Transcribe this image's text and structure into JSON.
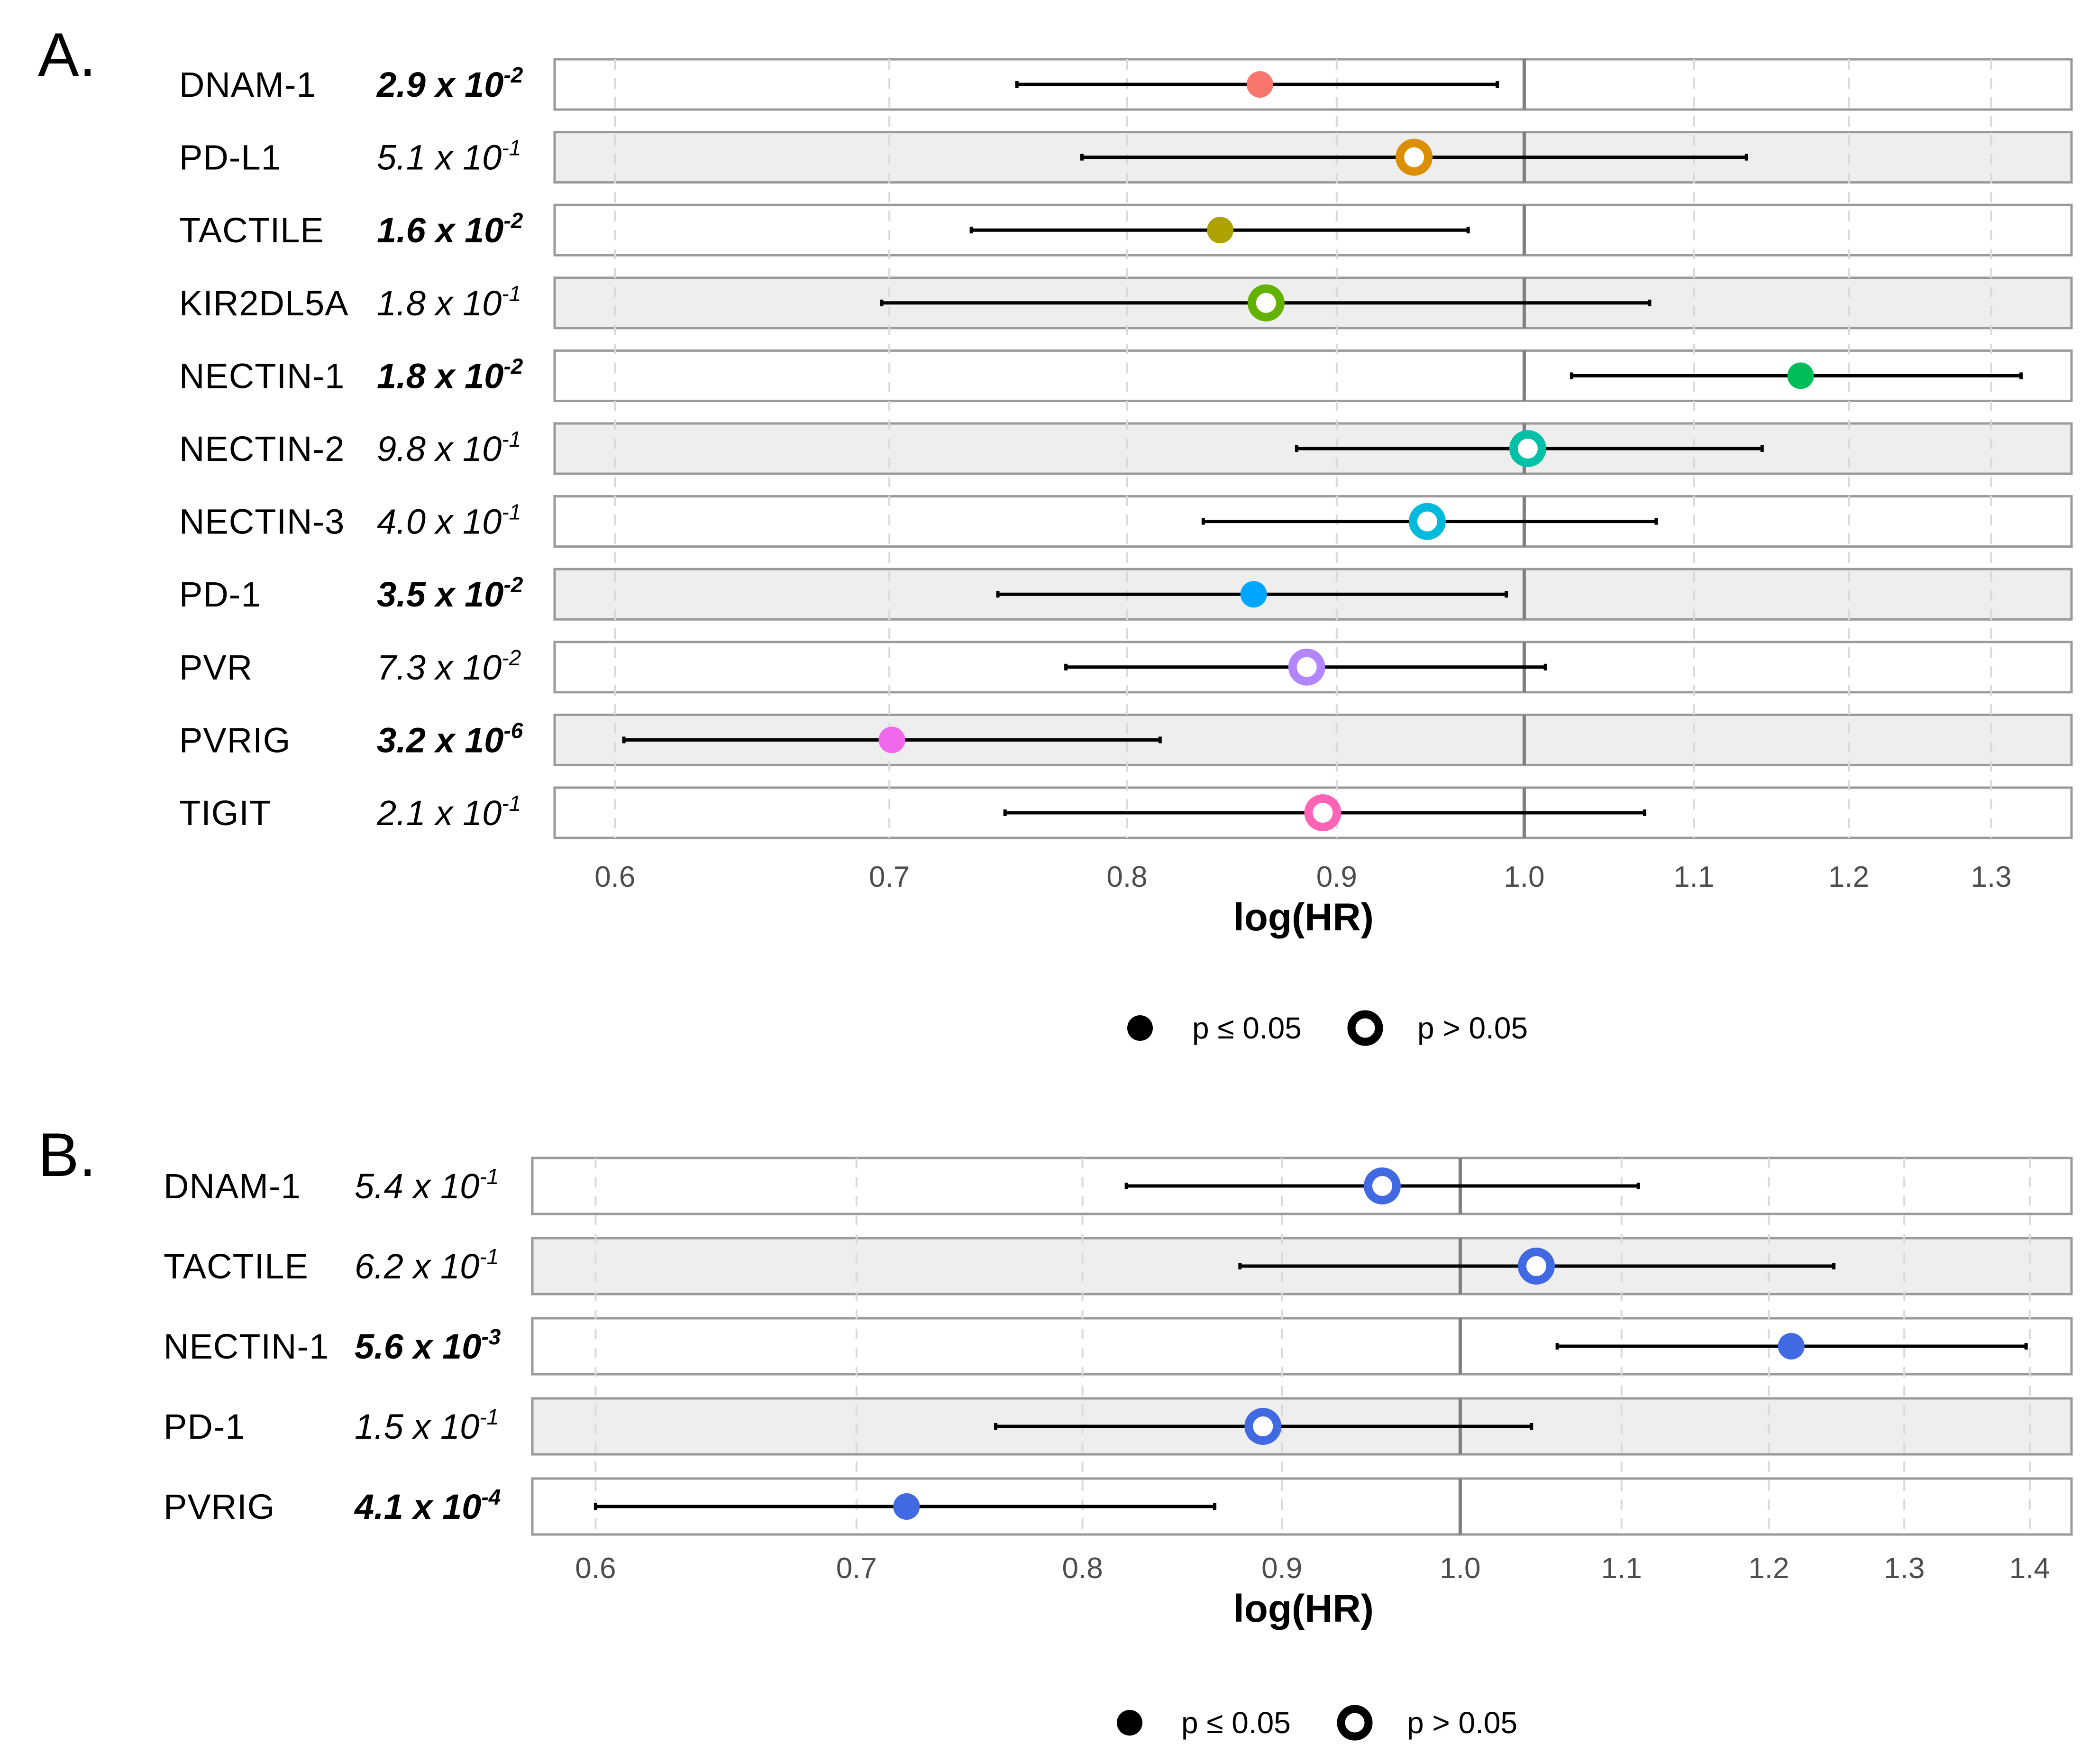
{
  "legend": {
    "sig_label": "p ≤ 0.05",
    "nonsig_label": "p > 0.05"
  },
  "chart_data": [
    {
      "panel": "A.",
      "type": "forest",
      "xlabel": "log(HR)",
      "xlim": [
        0.58,
        1.36
      ],
      "log_scale": true,
      "reference_line": 1.0,
      "xticks": [
        0.6,
        0.7,
        0.8,
        0.9,
        1.0,
        1.1,
        1.2,
        1.3
      ],
      "xtick_labels": [
        "0.6",
        "0.7",
        "0.8",
        "0.9",
        "1.0",
        "1.1",
        "1.2",
        "1.3"
      ],
      "legend": [
        "p ≤ 0.05",
        "p > 0.05"
      ],
      "rows": [
        {
          "label": "DNAM-1",
          "p_mant": "2.9 x 10",
          "p_exp": "-2",
          "hr": 0.862,
          "lo": 0.752,
          "hi": 0.985,
          "significant": true,
          "color": "#F8766D"
        },
        {
          "label": "PD-L1",
          "p_mant": "5.1 x 10",
          "p_exp": "-1",
          "hr": 0.94,
          "lo": 0.78,
          "hi": 1.133,
          "significant": false,
          "color": "#DB8E00"
        },
        {
          "label": "TACTILE",
          "p_mant": "1.6 x 10",
          "p_exp": "-2",
          "hr": 0.843,
          "lo": 0.733,
          "hi": 0.969,
          "significant": true,
          "color": "#AEA200"
        },
        {
          "label": "KIR2DL5A",
          "p_mant": "1.8 x 10",
          "p_exp": "-1",
          "hr": 0.865,
          "lo": 0.697,
          "hi": 1.073,
          "significant": false,
          "color": "#64B200"
        },
        {
          "label": "NECTIN-1",
          "p_mant": "1.8 x 10",
          "p_exp": "-2",
          "hr": 1.168,
          "lo": 1.027,
          "hi": 1.322,
          "significant": true,
          "color": "#00BD5C"
        },
        {
          "label": "NECTIN-2",
          "p_mant": "9.8 x 10",
          "p_exp": "-1",
          "hr": 1.002,
          "lo": 0.88,
          "hi": 1.143,
          "significant": false,
          "color": "#00C1A7"
        },
        {
          "label": "NECTIN-3",
          "p_mant": "4.0 x 10",
          "p_exp": "-1",
          "hr": 0.947,
          "lo": 0.835,
          "hi": 1.077,
          "significant": false,
          "color": "#00BADE"
        },
        {
          "label": "PD-1",
          "p_mant": "3.5 x 10",
          "p_exp": "-2",
          "hr": 0.859,
          "lo": 0.744,
          "hi": 0.99,
          "significant": true,
          "color": "#00A6FF"
        },
        {
          "label": "PVR",
          "p_mant": "7.3 x 10",
          "p_exp": "-2",
          "hr": 0.885,
          "lo": 0.773,
          "hi": 1.012,
          "significant": false,
          "color": "#B385FF"
        },
        {
          "label": "PVRIG",
          "p_mant": "3.2 x 10",
          "p_exp": "-6",
          "hr": 0.701,
          "lo": 0.603,
          "hi": 0.815,
          "significant": true,
          "color": "#EF67EB"
        },
        {
          "label": "TIGIT",
          "p_mant": "2.1 x 10",
          "p_exp": "-1",
          "hr": 0.893,
          "lo": 0.747,
          "hi": 1.07,
          "significant": false,
          "color": "#FF63B6"
        }
      ]
    },
    {
      "panel": "B.",
      "type": "forest",
      "xlabel": "log(HR)",
      "xlim": [
        0.578,
        1.435
      ],
      "log_scale": true,
      "reference_line": 1.0,
      "xticks": [
        0.6,
        0.7,
        0.8,
        0.9,
        1.0,
        1.1,
        1.2,
        1.3,
        1.4
      ],
      "xtick_labels": [
        "0.6",
        "0.7",
        "0.8",
        "0.9",
        "1.0",
        "1.1",
        "1.2",
        "1.3",
        "1.4"
      ],
      "legend": [
        "p ≤ 0.05",
        "p > 0.05"
      ],
      "rows": [
        {
          "label": "DNAM-1",
          "p_mant": "5.4 x 10",
          "p_exp": "-1",
          "hr": 0.955,
          "lo": 0.821,
          "hi": 1.111,
          "significant": false,
          "color": "#4169E1"
        },
        {
          "label": "TACTILE",
          "p_mant": "6.2 x 10",
          "p_exp": "-1",
          "hr": 1.046,
          "lo": 0.878,
          "hi": 1.247,
          "significant": false,
          "color": "#4169E1"
        },
        {
          "label": "NECTIN-1",
          "p_mant": "5.6 x 10",
          "p_exp": "-3",
          "hr": 1.216,
          "lo": 1.059,
          "hi": 1.397,
          "significant": true,
          "color": "#4169E1"
        },
        {
          "label": "PD-1",
          "p_mant": "1.5 x 10",
          "p_exp": "-1",
          "hr": 0.89,
          "lo": 0.76,
          "hi": 1.043,
          "significant": false,
          "color": "#4169E1"
        },
        {
          "label": "PVRIG",
          "p_mant": "4.1 x 10",
          "p_exp": "-4",
          "hr": 0.721,
          "lo": 0.6,
          "hi": 0.865,
          "significant": true,
          "color": "#4169E1"
        }
      ]
    }
  ]
}
